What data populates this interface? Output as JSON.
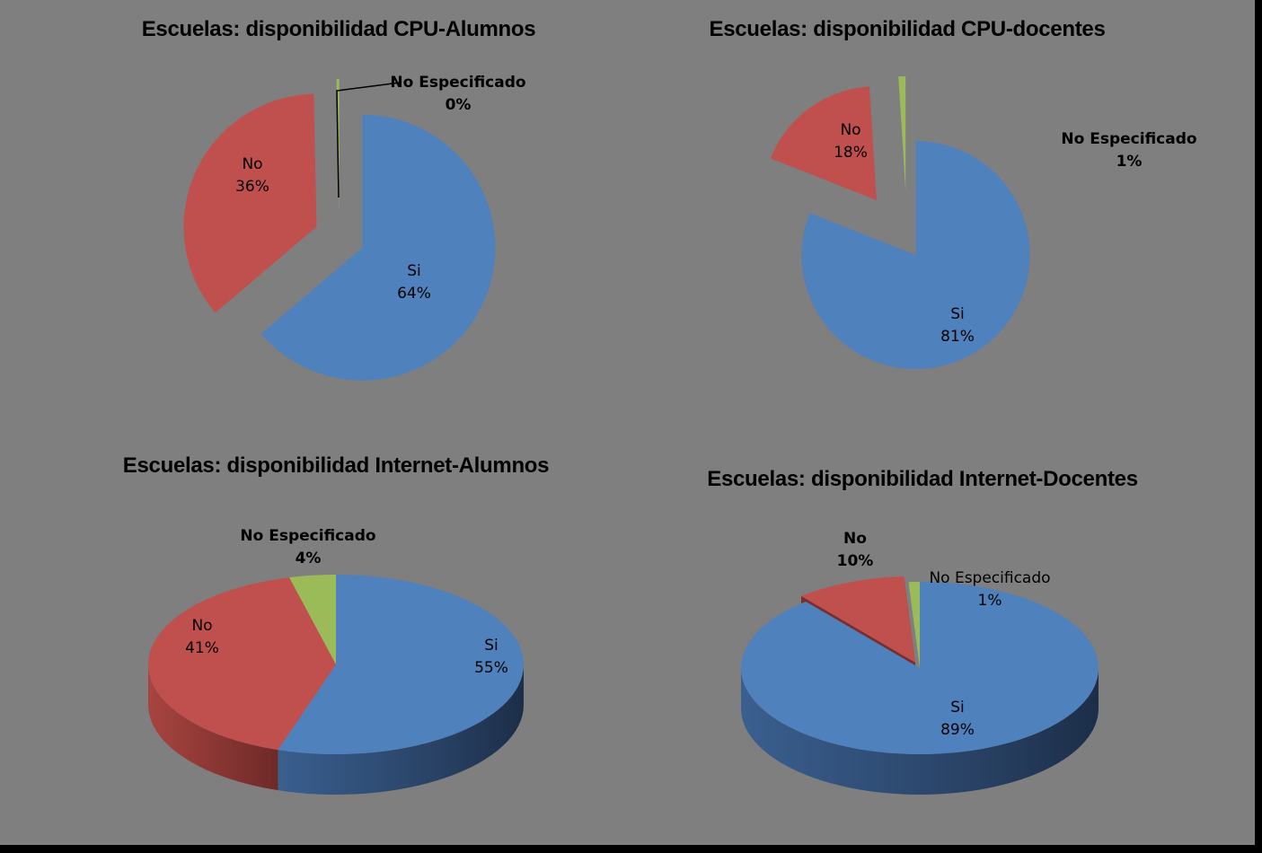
{
  "colors": {
    "background": "#7f7f7f",
    "frame": "#000000",
    "si": "#4f81bd",
    "no": "#c0504d",
    "no_especificado": "#9bbb59"
  },
  "chart_data": [
    {
      "type": "pie",
      "style": "2d-exploded",
      "title": "Escuelas: disponibilidad CPU-Alumnos",
      "slices": [
        {
          "label": "Si",
          "value": 64,
          "display": "64%",
          "color": "#4f81bd"
        },
        {
          "label": "No",
          "value": 36,
          "display": "36%",
          "color": "#c0504d"
        },
        {
          "label": "No Especificado",
          "value": 0,
          "display": "0%",
          "color": "#9bbb59"
        }
      ]
    },
    {
      "type": "pie",
      "style": "2d-exploded",
      "title": "Escuelas: disponibilidad CPU-docentes",
      "slices": [
        {
          "label": "Si",
          "value": 81,
          "display": "81%",
          "color": "#4f81bd"
        },
        {
          "label": "No",
          "value": 18,
          "display": "18%",
          "color": "#c0504d"
        },
        {
          "label": "No Especificado",
          "value": 1,
          "display": "1%",
          "color": "#9bbb59"
        }
      ]
    },
    {
      "type": "pie",
      "style": "3d",
      "title": "Escuelas: disponibilidad Internet-Alumnos",
      "slices": [
        {
          "label": "Si",
          "value": 55,
          "display": "55%",
          "color": "#4f81bd"
        },
        {
          "label": "No",
          "value": 41,
          "display": "41%",
          "color": "#c0504d"
        },
        {
          "label": "No Especificado",
          "value": 4,
          "display": "4%",
          "color": "#9bbb59"
        }
      ]
    },
    {
      "type": "pie",
      "style": "3d-exploded",
      "title": "Escuelas: disponibilidad Internet-Docentes",
      "slices": [
        {
          "label": "Si",
          "value": 89,
          "display": "89%",
          "color": "#4f81bd"
        },
        {
          "label": "No",
          "value": 10,
          "display": "10%",
          "color": "#c0504d"
        },
        {
          "label": "No Especificado",
          "value": 1,
          "display": "1%",
          "color": "#9bbb59"
        }
      ]
    }
  ]
}
